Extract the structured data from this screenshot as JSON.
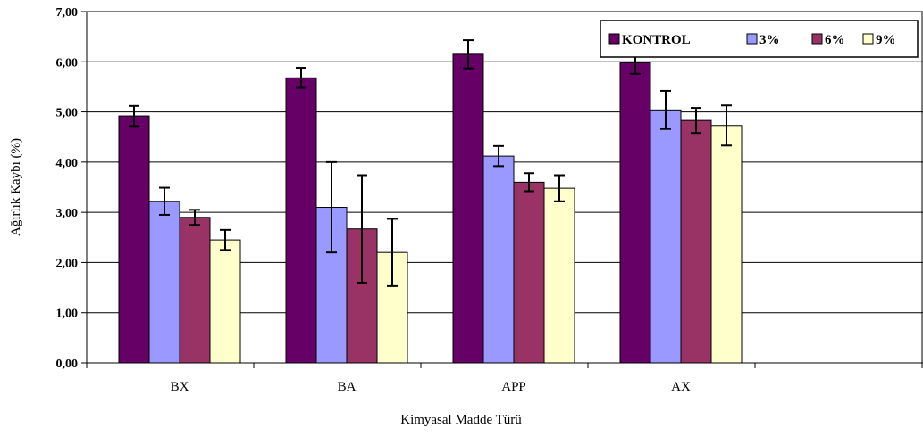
{
  "chart_data": {
    "type": "bar",
    "title": "",
    "xlabel": "Kimyasal Madde Türü",
    "ylabel": "Ağırlık Kaybı (%)",
    "ylim": [
      0,
      7
    ],
    "yticks": [
      "0,00",
      "1,00",
      "2,00",
      "3,00",
      "4,00",
      "5,00",
      "6,00",
      "7,00"
    ],
    "categories": [
      "BX",
      "BA",
      "APP",
      "AX"
    ],
    "series": [
      {
        "name": "KONTROL",
        "color": "#660066",
        "values": [
          4.92,
          5.68,
          6.15,
          5.98
        ],
        "errors": [
          0.2,
          0.2,
          0.28,
          0.22
        ]
      },
      {
        "name": "3%",
        "color": "#9999ff",
        "values": [
          3.22,
          3.1,
          4.12,
          5.04
        ],
        "errors": [
          0.27,
          0.9,
          0.2,
          0.38
        ]
      },
      {
        "name": "6%",
        "color": "#993366",
        "values": [
          2.9,
          2.67,
          3.6,
          4.83
        ],
        "errors": [
          0.15,
          1.07,
          0.18,
          0.25
        ]
      },
      {
        "name": "9%",
        "color": "#ffffcc",
        "values": [
          2.45,
          2.2,
          3.48,
          4.73
        ],
        "errors": [
          0.2,
          0.67,
          0.26,
          0.4
        ]
      }
    ],
    "grid": true,
    "legend_position": "top-right",
    "error_bars": true
  }
}
